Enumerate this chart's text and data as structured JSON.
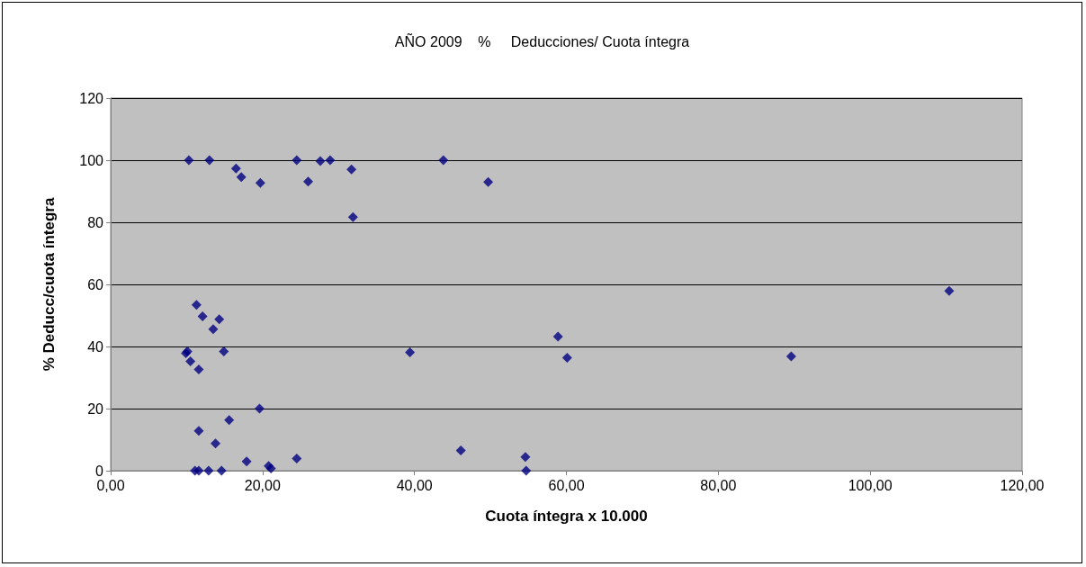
{
  "chart_data": {
    "type": "scatter",
    "title": "AÑO 2009    %     Deducciones/ Cuota íntegra",
    "xlabel": "Cuota íntegra x 10.000",
    "ylabel": "% Deducc/cuota íntegra",
    "x": [
      10.3,
      13.0,
      16.5,
      17.2,
      19.7,
      24.5,
      26.0,
      27.6,
      28.9,
      31.7,
      31.9,
      43.8,
      49.7,
      11.3,
      12.1,
      14.3,
      13.5,
      10.1,
      9.9,
      10.5,
      11.6,
      14.9,
      19.6,
      15.6,
      11.6,
      13.8,
      17.9,
      20.8,
      21.1,
      11.1,
      11.6,
      12.9,
      14.6,
      24.5,
      46.1,
      39.4,
      54.6,
      54.7,
      58.9,
      60.1,
      89.6,
      110.4
    ],
    "values": [
      100,
      100,
      97.3,
      94.6,
      92.7,
      100,
      93.1,
      99.7,
      100,
      97,
      81.7,
      100,
      93,
      53.4,
      49.7,
      48.8,
      45.6,
      38.4,
      37.8,
      35.2,
      32.6,
      38.4,
      20,
      16.3,
      12.8,
      8.8,
      3,
      1.5,
      0.7,
      0,
      0,
      0,
      0,
      3.9,
      6.5,
      38.1,
      4.4,
      0,
      43.2,
      36.4,
      36.8,
      57.9
    ],
    "color": "#000080",
    "marker": "diamond",
    "grid": "y",
    "xlim": [
      0,
      120
    ],
    "xticks": [
      {
        "value": 0,
        "label": "0,00"
      },
      {
        "value": 20,
        "label": "20,00"
      },
      {
        "value": 40,
        "label": "40,00"
      },
      {
        "value": 60,
        "label": "60,00"
      },
      {
        "value": 80,
        "label": "80,00"
      },
      {
        "value": 100,
        "label": "100,00"
      },
      {
        "value": 120,
        "label": "120,00"
      }
    ],
    "ylim": [
      0,
      120
    ],
    "yticks": [
      0,
      20,
      40,
      60,
      80,
      100,
      120
    ]
  }
}
